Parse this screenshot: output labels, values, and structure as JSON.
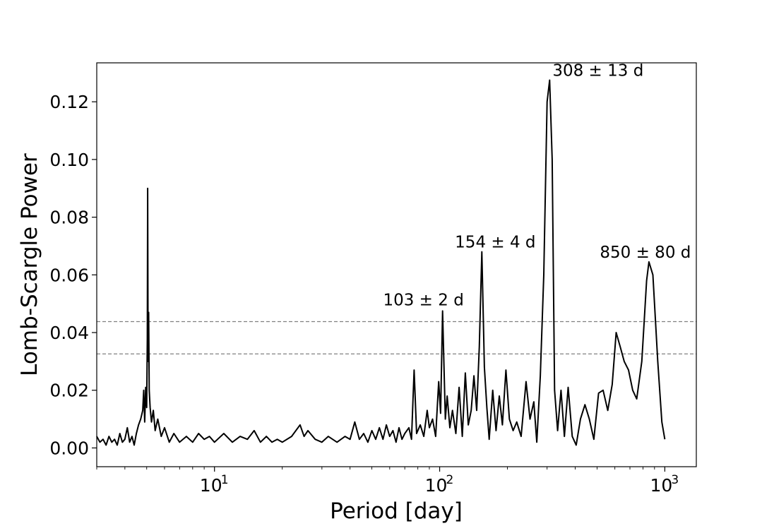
{
  "chart_data": {
    "type": "line",
    "title": "",
    "xlabel": "Period [day]",
    "ylabel": "Lomb-Scargle Power",
    "xscale": "log",
    "xlim": [
      3,
      1380
    ],
    "ylim": [
      -0.0065,
      0.1335
    ],
    "grid": false,
    "line_color": "#000000",
    "x_ticks": [
      {
        "value": 10,
        "base": "10",
        "exp": "1"
      },
      {
        "value": 100,
        "base": "10",
        "exp": "2"
      },
      {
        "value": 1000,
        "base": "10",
        "exp": "3"
      }
    ],
    "y_ticks": [
      {
        "value": 0.0,
        "label": "0.00"
      },
      {
        "value": 0.02,
        "label": "0.02"
      },
      {
        "value": 0.04,
        "label": "0.04"
      },
      {
        "value": 0.06,
        "label": "0.06"
      },
      {
        "value": 0.08,
        "label": "0.08"
      },
      {
        "value": 0.1,
        "label": "0.10"
      },
      {
        "value": 0.12,
        "label": "0.12"
      }
    ],
    "thresholds": [
      {
        "y": 0.0438,
        "color": "#808080"
      },
      {
        "y": 0.0326,
        "color": "#808080"
      }
    ],
    "annotations": [
      {
        "text": "308 ± 13 d",
        "x": 308,
        "y": 0.1275
      },
      {
        "text": "154 ± 4 d",
        "x": 154,
        "y": 0.068
      },
      {
        "text": "850 ± 80 d",
        "x": 850,
        "y": 0.0645
      },
      {
        "text": "103 ± 2 d",
        "x": 103,
        "y": 0.0475
      }
    ],
    "series": [
      {
        "points": [
          [
            3.0,
            0.004
          ],
          [
            3.1,
            0.002
          ],
          [
            3.2,
            0.003
          ],
          [
            3.3,
            0.001
          ],
          [
            3.4,
            0.004
          ],
          [
            3.5,
            0.002
          ],
          [
            3.6,
            0.003
          ],
          [
            3.7,
            0.001
          ],
          [
            3.8,
            0.005
          ],
          [
            3.9,
            0.002
          ],
          [
            4.0,
            0.003
          ],
          [
            4.1,
            0.007
          ],
          [
            4.2,
            0.002
          ],
          [
            4.3,
            0.004
          ],
          [
            4.4,
            0.001
          ],
          [
            4.5,
            0.005
          ],
          [
            4.6,
            0.008
          ],
          [
            4.7,
            0.01
          ],
          [
            4.8,
            0.013
          ],
          [
            4.85,
            0.02
          ],
          [
            4.9,
            0.009
          ],
          [
            4.95,
            0.021
          ],
          [
            5.0,
            0.014
          ],
          [
            5.03,
            0.038
          ],
          [
            5.05,
            0.09
          ],
          [
            5.07,
            0.03
          ],
          [
            5.1,
            0.047
          ],
          [
            5.13,
            0.02
          ],
          [
            5.18,
            0.014
          ],
          [
            5.25,
            0.009
          ],
          [
            5.35,
            0.013
          ],
          [
            5.45,
            0.006
          ],
          [
            5.6,
            0.01
          ],
          [
            5.8,
            0.004
          ],
          [
            6.0,
            0.007
          ],
          [
            6.3,
            0.002
          ],
          [
            6.6,
            0.005
          ],
          [
            7.0,
            0.002
          ],
          [
            7.5,
            0.004
          ],
          [
            8.0,
            0.002
          ],
          [
            8.5,
            0.005
          ],
          [
            9.0,
            0.003
          ],
          [
            9.5,
            0.004
          ],
          [
            10.0,
            0.002
          ],
          [
            11.0,
            0.005
          ],
          [
            12.0,
            0.002
          ],
          [
            13.0,
            0.004
          ],
          [
            14.0,
            0.003
          ],
          [
            15.0,
            0.006
          ],
          [
            16.0,
            0.002
          ],
          [
            17.0,
            0.004
          ],
          [
            18.0,
            0.002
          ],
          [
            19.0,
            0.003
          ],
          [
            20.0,
            0.002
          ],
          [
            22.0,
            0.004
          ],
          [
            24.0,
            0.008
          ],
          [
            25.0,
            0.004
          ],
          [
            26.0,
            0.006
          ],
          [
            28.0,
            0.003
          ],
          [
            30.0,
            0.002
          ],
          [
            32.0,
            0.004
          ],
          [
            35.0,
            0.002
          ],
          [
            38.0,
            0.004
          ],
          [
            40.0,
            0.003
          ],
          [
            42.0,
            0.009
          ],
          [
            44.0,
            0.003
          ],
          [
            46.0,
            0.005
          ],
          [
            48.0,
            0.002
          ],
          [
            50.0,
            0.006
          ],
          [
            52.0,
            0.003
          ],
          [
            54.0,
            0.007
          ],
          [
            56.0,
            0.003
          ],
          [
            58.0,
            0.008
          ],
          [
            60.0,
            0.004
          ],
          [
            62.0,
            0.006
          ],
          [
            64.0,
            0.002
          ],
          [
            66.0,
            0.007
          ],
          [
            68.0,
            0.003
          ],
          [
            70.0,
            0.005
          ],
          [
            73.0,
            0.007
          ],
          [
            75.0,
            0.003
          ],
          [
            77.0,
            0.027
          ],
          [
            79.0,
            0.005
          ],
          [
            82.0,
            0.008
          ],
          [
            85.0,
            0.004
          ],
          [
            88.0,
            0.013
          ],
          [
            90.0,
            0.007
          ],
          [
            93.0,
            0.01
          ],
          [
            96.0,
            0.004
          ],
          [
            99.0,
            0.023
          ],
          [
            101.0,
            0.012
          ],
          [
            103.0,
            0.0475
          ],
          [
            106.0,
            0.01
          ],
          [
            108.0,
            0.018
          ],
          [
            111.0,
            0.007
          ],
          [
            114.0,
            0.013
          ],
          [
            118.0,
            0.005
          ],
          [
            122.0,
            0.021
          ],
          [
            126.0,
            0.004
          ],
          [
            130.0,
            0.026
          ],
          [
            134.0,
            0.008
          ],
          [
            138.0,
            0.013
          ],
          [
            142.0,
            0.025
          ],
          [
            146.0,
            0.013
          ],
          [
            150.0,
            0.035
          ],
          [
            154.0,
            0.068
          ],
          [
            158.0,
            0.028
          ],
          [
            162.0,
            0.014
          ],
          [
            166.0,
            0.003
          ],
          [
            172.0,
            0.02
          ],
          [
            178.0,
            0.006
          ],
          [
            184.0,
            0.018
          ],
          [
            190.0,
            0.008
          ],
          [
            197.0,
            0.027
          ],
          [
            204.0,
            0.01
          ],
          [
            212.0,
            0.006
          ],
          [
            220.0,
            0.009
          ],
          [
            230.0,
            0.004
          ],
          [
            242.0,
            0.023
          ],
          [
            252.0,
            0.01
          ],
          [
            262.0,
            0.016
          ],
          [
            270.0,
            0.002
          ],
          [
            280.0,
            0.025
          ],
          [
            290.0,
            0.06
          ],
          [
            300.0,
            0.12
          ],
          [
            308.0,
            0.1275
          ],
          [
            316.0,
            0.1
          ],
          [
            324.0,
            0.02
          ],
          [
            334.0,
            0.006
          ],
          [
            346.0,
            0.02
          ],
          [
            358.0,
            0.004
          ],
          [
            372.0,
            0.021
          ],
          [
            388.0,
            0.004
          ],
          [
            404.0,
            0.001
          ],
          [
            422.0,
            0.01
          ],
          [
            442.0,
            0.015
          ],
          [
            462.0,
            0.01
          ],
          [
            484.0,
            0.003
          ],
          [
            508.0,
            0.019
          ],
          [
            532.0,
            0.02
          ],
          [
            558.0,
            0.013
          ],
          [
            584.0,
            0.022
          ],
          [
            608.0,
            0.04
          ],
          [
            634.0,
            0.035
          ],
          [
            660.0,
            0.03
          ],
          [
            690.0,
            0.027
          ],
          [
            720.0,
            0.02
          ],
          [
            750.0,
            0.017
          ],
          [
            790.0,
            0.03
          ],
          [
            830.0,
            0.058
          ],
          [
            850.0,
            0.0645
          ],
          [
            885.0,
            0.06
          ],
          [
            930.0,
            0.03
          ],
          [
            970.0,
            0.009
          ],
          [
            1000.0,
            0.003
          ]
        ]
      }
    ]
  }
}
